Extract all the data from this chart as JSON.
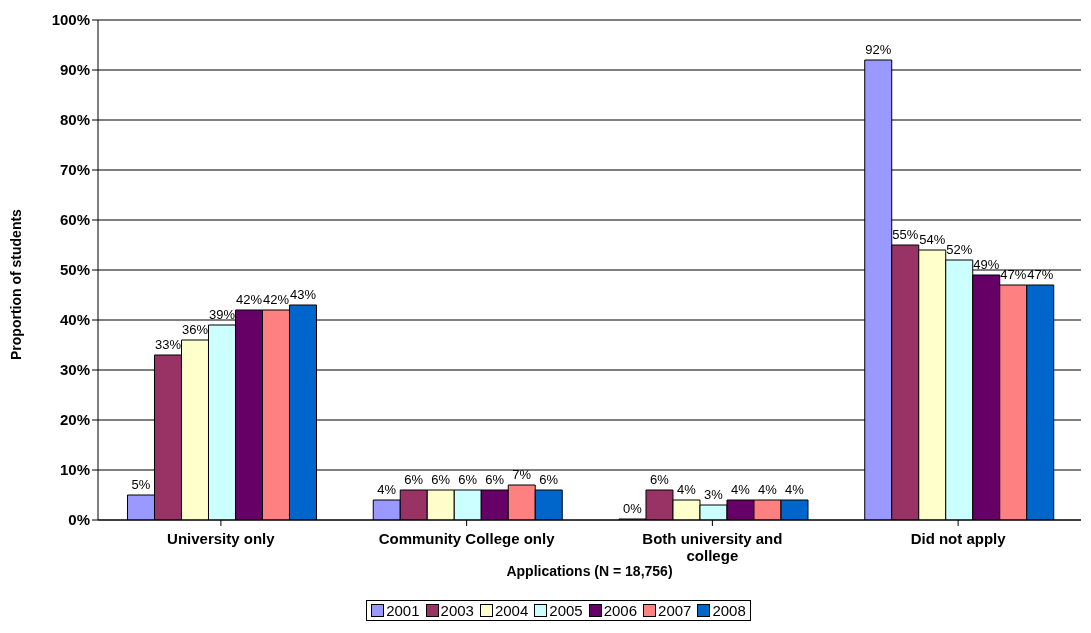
{
  "chart_data": {
    "type": "bar",
    "xlabel": "Applications (N = 18,756)",
    "ylabel": "Proportion of students",
    "categories": [
      "University only",
      "Community College only",
      "Both university and college",
      "Did not apply"
    ],
    "series": [
      {
        "name": "2001",
        "color": "#9999ff",
        "values": [
          5,
          4,
          0,
          92
        ],
        "value_labels": [
          "5%",
          "4%",
          "0%",
          "92%"
        ]
      },
      {
        "name": "2003",
        "color": "#993366",
        "values": [
          33,
          6,
          6,
          55
        ],
        "value_labels": [
          "33%",
          "6%",
          "6%",
          "55%"
        ]
      },
      {
        "name": "2004",
        "color": "#ffffcc",
        "values": [
          36,
          6,
          4,
          54
        ],
        "value_labels": [
          "36%",
          "6%",
          "4%",
          "54%"
        ]
      },
      {
        "name": "2005",
        "color": "#ccffff",
        "values": [
          39,
          6,
          3,
          52
        ],
        "value_labels": [
          "39%",
          "6%",
          "3%",
          "52%"
        ]
      },
      {
        "name": "2006",
        "color": "#660066",
        "values": [
          42,
          6,
          4,
          49
        ],
        "value_labels": [
          "42%",
          "6%",
          "4%",
          "49%"
        ]
      },
      {
        "name": "2007",
        "color": "#ff8080",
        "values": [
          42,
          7,
          4,
          47
        ],
        "value_labels": [
          "42%",
          "7%",
          "4%",
          "47%"
        ]
      },
      {
        "name": "2008",
        "color": "#0066cc",
        "values": [
          43,
          6,
          4,
          47
        ],
        "value_labels": [
          "43%",
          "6%",
          "4%",
          "47%"
        ]
      }
    ],
    "ylim": [
      0,
      100
    ],
    "yticks": [
      {
        "value": 0,
        "label": "0%"
      },
      {
        "value": 10,
        "label": "10%"
      },
      {
        "value": 20,
        "label": "20%"
      },
      {
        "value": 30,
        "label": "30%"
      },
      {
        "value": 40,
        "label": "40%"
      },
      {
        "value": 50,
        "label": "50%"
      },
      {
        "value": 60,
        "label": "60%"
      },
      {
        "value": 70,
        "label": "70%"
      },
      {
        "value": 80,
        "label": "80%"
      },
      {
        "value": 90,
        "label": "90%"
      },
      {
        "value": 100,
        "label": "100%"
      }
    ],
    "grid": "y",
    "legend": "bottom"
  }
}
